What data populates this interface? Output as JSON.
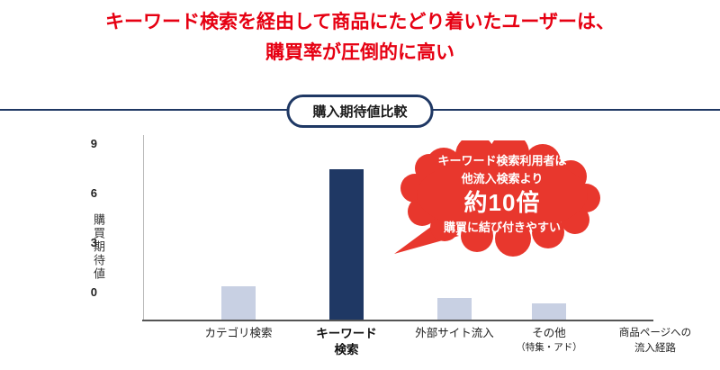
{
  "title": {
    "line1": "キーワード検索を経由して商品にたどり着いたユーザーは、",
    "line2": "購買率が圧倒的に高い"
  },
  "section_badge": "購入期待値比較",
  "chart_data": {
    "type": "bar",
    "title": "購入期待値比較",
    "ylabel": "購買期待値",
    "xlabel": "商品ページへの流入経路",
    "categories": [
      "カテゴリ検索",
      "キーワード検索",
      "外部サイト流入",
      "その他（特集・アド）"
    ],
    "values": [
      0.4,
      7.5,
      -0.3,
      -0.6
    ],
    "ylim": [
      -1.6,
      9.6
    ],
    "yticks": [
      0,
      3,
      6,
      9
    ],
    "ytick_labels": [
      "0",
      "3",
      "6",
      "9"
    ],
    "grid": false,
    "legend": "none",
    "colors": [
      "#c8d0e3",
      "#1f3864",
      "#c8d0e3",
      "#c8d0e3"
    ],
    "highlight_index": 1,
    "x_labels": [
      {
        "lines": [
          "カテゴリ検索"
        ]
      },
      {
        "lines": [
          "キーワード",
          "検索"
        ]
      },
      {
        "lines": [
          "外部サイト流入"
        ]
      },
      {
        "lines": [
          "その他",
          "（特集・アド）"
        ]
      }
    ],
    "axis_title_lines": [
      "商品ページへの",
      "流入経路"
    ]
  },
  "callout": {
    "line1": "キーワード検索利用者は",
    "line2": "他流入検索より",
    "big": "約10倍",
    "line3": "購買に結び付きやすい",
    "color": "#e8372d"
  },
  "colors": {
    "title_red": "#e60012",
    "navy": "#1f3864",
    "light_bar": "#c8d0e3",
    "bubble_red": "#e8372d"
  }
}
